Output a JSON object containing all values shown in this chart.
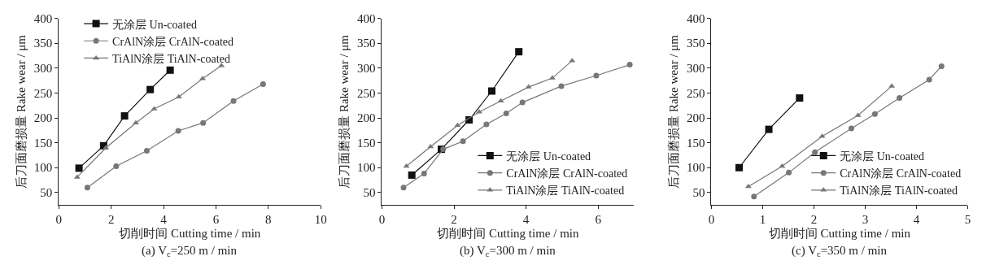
{
  "chart_data": [
    {
      "type": "line",
      "title": "(a) V$_{c}$=250 m / min",
      "xlabel": "切削时间 Cutting time / min",
      "ylabel": "后刀面磨损量 Rake wear / μm",
      "xlim": [
        0,
        10
      ],
      "xticks": [
        0,
        2,
        4,
        6,
        8,
        10
      ],
      "ylim": [
        25,
        400
      ],
      "yticks": [
        50,
        100,
        150,
        200,
        250,
        300,
        350,
        400
      ],
      "legend": "top left",
      "series": [
        {
          "name": "无涂层 Un-coated",
          "color": "#111111",
          "marker": "square",
          "x": [
            0.77,
            1.71,
            2.51,
            3.49,
            4.25
          ],
          "values": [
            99,
            144,
            204,
            257,
            296
          ]
        },
        {
          "name": "CrAlN涂层 CrAlN-coated",
          "color": "#777777",
          "marker": "circle",
          "x": [
            1.09,
            2.19,
            3.36,
            4.56,
            5.51,
            6.67,
            7.8
          ],
          "values": [
            60,
            103,
            134,
            174,
            190,
            234,
            268
          ]
        },
        {
          "name": "TiAlN涂层 TiAlN-coated",
          "color": "#777777",
          "marker": "triangle",
          "x": [
            0.7,
            1.8,
            2.94,
            3.64,
            4.58,
            5.49,
            6.21
          ],
          "values": [
            81,
            140,
            190,
            218,
            242,
            279,
            305
          ]
        }
      ]
    },
    {
      "type": "line",
      "title": "(b) V$_{c}$=300 m / min",
      "xlabel": "切削时间 Cutting time / min",
      "ylabel": "后刀面磨损量 Rake wear / μm",
      "xlim": [
        0,
        7
      ],
      "xticks": [
        0,
        2,
        4,
        6
      ],
      "ylim": [
        25,
        400
      ],
      "yticks": [
        50,
        100,
        150,
        200,
        250,
        300,
        350,
        400
      ],
      "legend": "bottom right",
      "series": [
        {
          "name": "无涂层 Un-coated",
          "color": "#111111",
          "marker": "square",
          "x": [
            0.83,
            1.65,
            2.42,
            3.05,
            3.8
          ],
          "values": [
            85,
            137,
            196,
            254,
            333
          ]
        },
        {
          "name": "CrAlN涂层 CrAlN-coated",
          "color": "#777777",
          "marker": "circle",
          "x": [
            0.6,
            1.17,
            1.7,
            2.25,
            2.9,
            3.45,
            3.9,
            4.98,
            5.95,
            6.88
          ],
          "values": [
            60,
            88,
            137,
            153,
            187,
            209,
            231,
            264,
            285,
            307
          ]
        },
        {
          "name": "TiAlN涂层 TiAlN-coated",
          "color": "#777777",
          "marker": "triangle",
          "x": [
            0.68,
            1.35,
            2.1,
            2.7,
            3.3,
            4.07,
            4.73,
            5.28
          ],
          "values": [
            103,
            142,
            185,
            212,
            234,
            262,
            280,
            315
          ]
        }
      ]
    },
    {
      "type": "line",
      "title": "(c) V$_{c}$=350 m / min",
      "xlabel": "切削时间 Cutting time / min",
      "ylabel": "后刀面磨损量 Rake wear / μm",
      "xlim": [
        0,
        5
      ],
      "xticks": [
        0,
        1,
        2,
        3,
        4,
        5
      ],
      "ylim": [
        25,
        400
      ],
      "yticks": [
        50,
        100,
        150,
        200,
        250,
        300,
        350,
        400
      ],
      "legend": "bottom right",
      "series": [
        {
          "name": "无涂层 Un-coated",
          "color": "#111111",
          "marker": "square",
          "x": [
            0.54,
            1.12,
            1.72
          ],
          "values": [
            100,
            177,
            240
          ]
        },
        {
          "name": "CrAlN涂层 CrAlN-coated",
          "color": "#777777",
          "marker": "circle",
          "x": [
            0.83,
            1.51,
            2.02,
            2.73,
            3.19,
            3.67,
            4.25,
            4.49
          ],
          "values": [
            42,
            90,
            131,
            179,
            208,
            240,
            277,
            304
          ]
        },
        {
          "name": "TiAlN涂层 TiAlN-coated",
          "color": "#777777",
          "marker": "triangle",
          "x": [
            0.72,
            1.38,
            2.16,
            2.86,
            3.52
          ],
          "values": [
            62,
            103,
            163,
            205,
            264
          ]
        }
      ]
    }
  ]
}
